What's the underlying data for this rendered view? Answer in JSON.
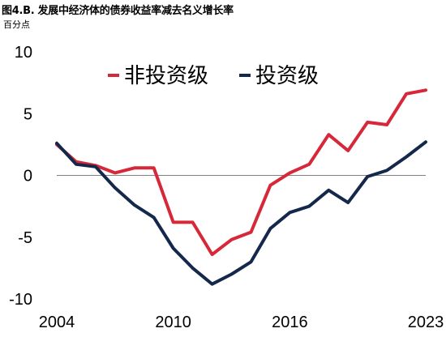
{
  "title": "图4.B. 发展中经济体的债券收益率减去名义增长率",
  "unit": "百分点",
  "colors": {
    "non_investment": "#d62839",
    "investment": "#13284b",
    "zero_line": "#808080"
  },
  "chart_data": {
    "type": "line",
    "title": "图4.B. 发展中经济体的债券收益率减去名义增长率",
    "ylabel": "百分点",
    "xlabel": "",
    "ylim": [
      -10,
      10
    ],
    "xlim": [
      2004,
      2023
    ],
    "yticks": [
      10,
      5,
      0,
      -5,
      -10
    ],
    "xticks": [
      2004,
      2010,
      2016,
      2023
    ],
    "grid": false,
    "legend": "top-center",
    "x": [
      2004,
      2005,
      2006,
      2007,
      2008,
      2009,
      2010,
      2011,
      2012,
      2013,
      2014,
      2015,
      2016,
      2017,
      2018,
      2019,
      2020,
      2021,
      2022,
      2023
    ],
    "series": [
      {
        "name": "非投资级",
        "color": "#d62839",
        "values": [
          2.5,
          1.1,
          0.8,
          0.2,
          0.6,
          0.6,
          -3.8,
          -3.8,
          -6.4,
          -5.2,
          -4.6,
          -0.8,
          0.2,
          0.9,
          3.3,
          2.0,
          4.3,
          4.1,
          6.6,
          6.9
        ]
      },
      {
        "name": "投资级",
        "color": "#13284b",
        "values": [
          2.6,
          0.9,
          0.7,
          -1.0,
          -2.4,
          -3.4,
          -5.9,
          -7.5,
          -8.8,
          -8.0,
          -7.0,
          -4.3,
          -3.0,
          -2.5,
          -1.2,
          -2.2,
          -0.1,
          0.4,
          1.5,
          2.7
        ]
      }
    ]
  }
}
